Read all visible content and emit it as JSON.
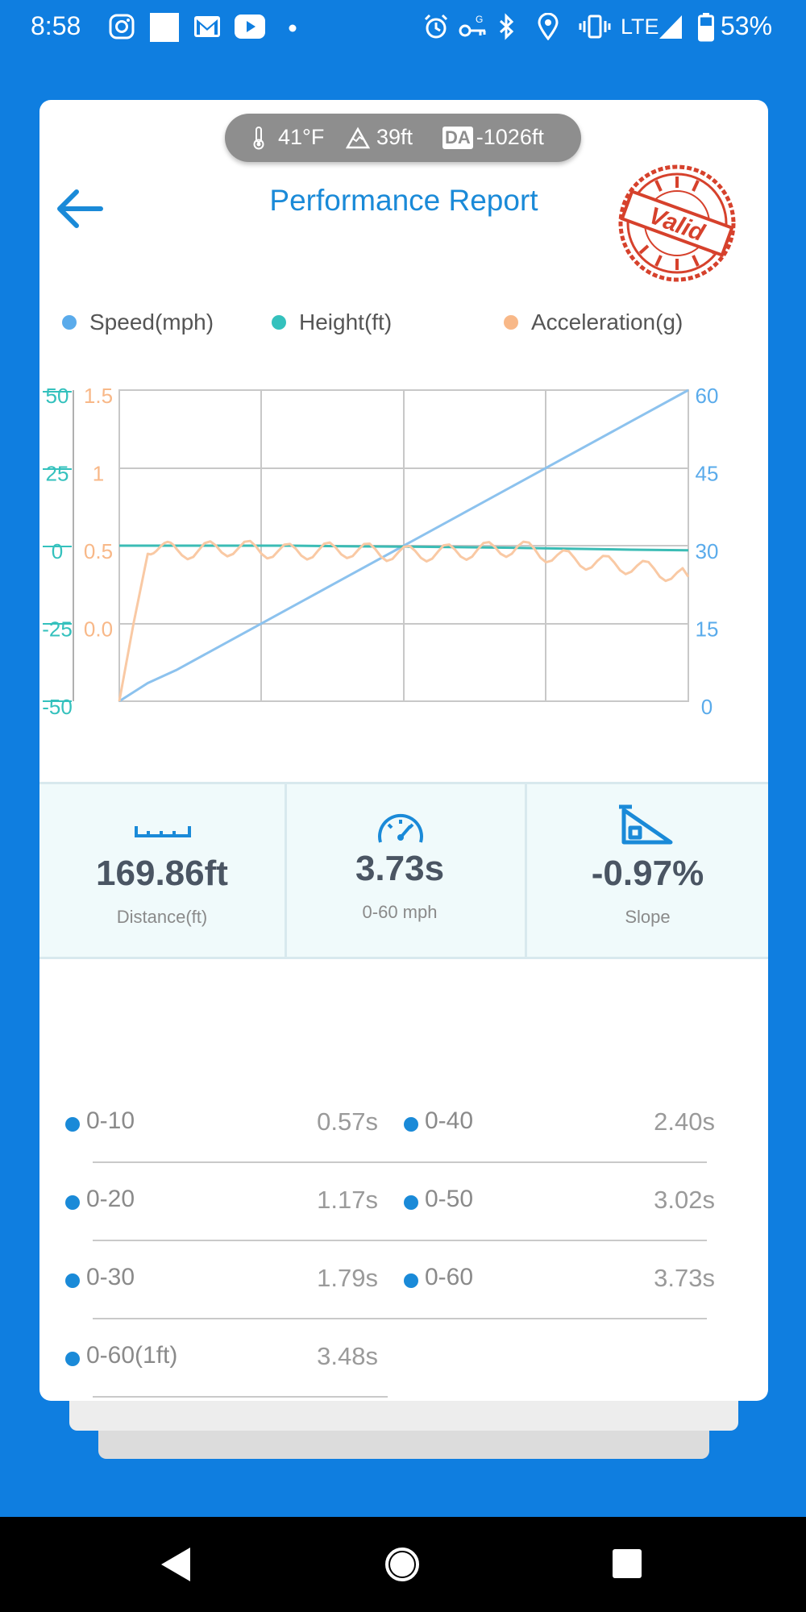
{
  "status_bar": {
    "time": "8:58",
    "network": "LTE",
    "battery": "53%"
  },
  "weather": {
    "temperature": "41°F",
    "altitude": "39ft",
    "da_badge": "DA",
    "density_altitude": "-1026ft"
  },
  "header": {
    "title": "Performance Report",
    "stamp_text": "Valid"
  },
  "legend": [
    {
      "label": "Speed(mph)",
      "color": "#5aabeb"
    },
    {
      "label": "Height(ft)",
      "color": "#34c1bd"
    },
    {
      "label": "Acceleration(g)",
      "color": "#f8b888"
    }
  ],
  "chart_data": {
    "type": "line",
    "axes": {
      "height_left_ticks": [
        "50",
        "25",
        "0",
        "-25",
        "-50"
      ],
      "accel_left_ticks": [
        "1.5",
        "1",
        "0.5",
        "0.0"
      ],
      "speed_right_ticks": [
        "60",
        "45",
        "30",
        "15",
        "0"
      ],
      "speed_range": [
        0,
        60
      ],
      "height_range": [
        -50,
        50
      ],
      "accel_range": [
        0.0,
        1.5
      ]
    },
    "grid": true,
    "x": [
      0,
      0.05,
      0.1,
      0.2,
      0.3,
      0.4,
      0.5,
      0.6,
      0.7,
      0.8,
      0.9,
      1.0
    ],
    "series": [
      {
        "name": "Speed(mph)",
        "color": "#8cc2ee",
        "values": [
          0,
          3.5,
          6,
          12,
          18,
          24,
          30,
          36,
          42,
          48,
          54,
          60
        ]
      },
      {
        "name": "Height(ft)",
        "color": "#3bbcb5",
        "values": [
          0,
          0,
          0,
          0,
          0,
          -0.2,
          -0.3,
          -0.5,
          -0.7,
          -1,
          -1.3,
          -1.5
        ]
      },
      {
        "name": "Acceleration(g)",
        "color": "#f9c9a4",
        "values": [
          0.0,
          0.75,
          0.72,
          0.74,
          0.72,
          0.73,
          0.71,
          0.72,
          0.74,
          0.68,
          0.65,
          0.6
        ]
      }
    ]
  },
  "stats": [
    {
      "value": "169.86ft",
      "label": "Distance(ft)",
      "icon": "ruler-icon"
    },
    {
      "value": "3.73s",
      "label": "0-60 mph",
      "icon": "speedometer-icon"
    },
    {
      "value": "-0.97%",
      "label": "Slope",
      "icon": "slope-icon"
    }
  ],
  "splits": [
    {
      "name": "0-10",
      "time": "0.57s"
    },
    {
      "name": "0-40",
      "time": "2.40s"
    },
    {
      "name": "0-20",
      "time": "1.17s"
    },
    {
      "name": "0-50",
      "time": "3.02s"
    },
    {
      "name": "0-30",
      "time": "1.79s"
    },
    {
      "name": "0-60",
      "time": "3.73s"
    },
    {
      "name": "0-60(1ft)",
      "time": "3.48s"
    }
  ]
}
